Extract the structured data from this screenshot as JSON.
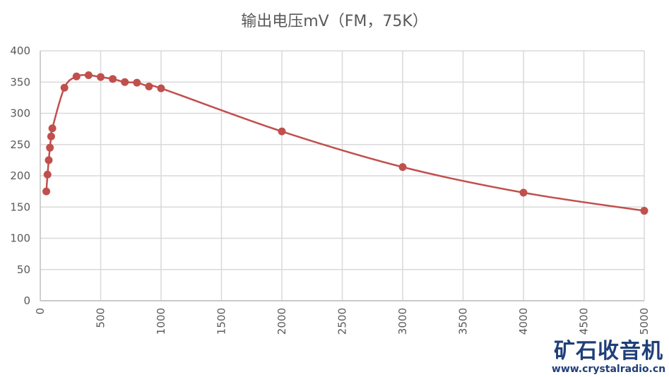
{
  "chart_data": {
    "type": "line",
    "title": "输出电压mV（FM，75K）",
    "xlabel": "",
    "ylabel": "",
    "xlim": [
      0,
      5000
    ],
    "ylim": [
      0,
      400
    ],
    "xticks": [
      0,
      500,
      1000,
      1500,
      2000,
      2500,
      3000,
      3500,
      4000,
      4500,
      5000
    ],
    "xtick_labels": [
      "0",
      "500",
      "1000",
      "1500",
      "2000",
      "2500",
      "3000",
      "3500",
      "4000",
      "4500",
      "5000"
    ],
    "yticks": [
      0,
      50,
      100,
      150,
      200,
      250,
      300,
      350,
      400
    ],
    "ytick_labels": [
      "0",
      "50",
      "100",
      "150",
      "200",
      "250",
      "300",
      "350",
      "400"
    ],
    "grid": true,
    "series": [
      {
        "name": "输出电压mV",
        "color": "#c0504d",
        "x": [
          50,
          60,
          70,
          80,
          90,
          100,
          200,
          300,
          400,
          500,
          600,
          700,
          800,
          900,
          1000,
          2000,
          3000,
          4000,
          5000
        ],
        "y": [
          175,
          202,
          225,
          245,
          263,
          276,
          341,
          359,
          361,
          358,
          355,
          350,
          349,
          343,
          340,
          271,
          214,
          173,
          144
        ]
      }
    ]
  },
  "watermark": {
    "name": "矿石收音机",
    "url": "www.crystalradio.cn"
  }
}
